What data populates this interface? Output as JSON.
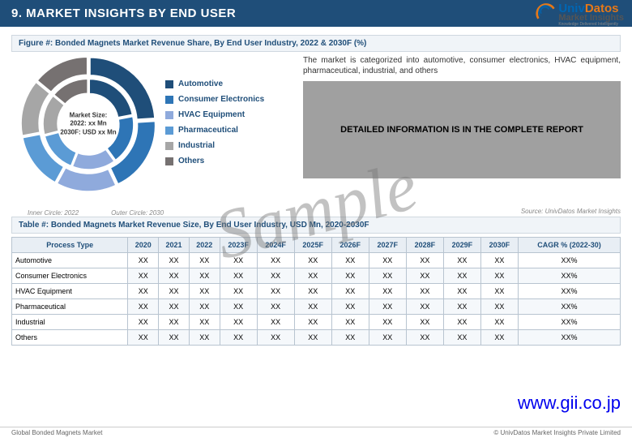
{
  "header": {
    "title": "9. MARKET INSIGHTS BY END USER"
  },
  "logo": {
    "line1a": "Univ",
    "line1b": "Datos",
    "line2": "Market Insights",
    "line3": "Knowledge Delivered Intelligently"
  },
  "figure": {
    "title": "Figure #: Bonded Magnets Market Revenue Share, By End User Industry, 2022 & 2030F (%)",
    "center_l1": "Market Size:",
    "center_l2": "2022: xx Mn",
    "center_l3": "2030F: USD xx Mn",
    "inner_label": "Inner Circle: 2022",
    "outer_label": "Outer Circle: 2030",
    "legend": [
      {
        "label": "Automotive",
        "color": "#1f4e79"
      },
      {
        "label": "Consumer Electronics",
        "color": "#2e75b6"
      },
      {
        "label": "HVAC Equipment",
        "color": "#8faadc"
      },
      {
        "label": "Pharmaceutical",
        "color": "#5b9bd5"
      },
      {
        "label": "Industrial",
        "color": "#a6a6a6"
      },
      {
        "label": "Others",
        "color": "#767171"
      }
    ],
    "outer_slices": [
      {
        "color": "#1f4e79",
        "pct": 24
      },
      {
        "color": "#2e75b6",
        "pct": 19
      },
      {
        "color": "#8faadc",
        "pct": 15
      },
      {
        "color": "#5b9bd5",
        "pct": 14
      },
      {
        "color": "#a6a6a6",
        "pct": 14
      },
      {
        "color": "#767171",
        "pct": 14
      }
    ],
    "inner_slices": [
      {
        "color": "#1f4e79",
        "pct": 22
      },
      {
        "color": "#2e75b6",
        "pct": 18
      },
      {
        "color": "#8faadc",
        "pct": 16
      },
      {
        "color": "#5b9bd5",
        "pct": 15
      },
      {
        "color": "#a6a6a6",
        "pct": 15
      },
      {
        "color": "#767171",
        "pct": 14
      }
    ]
  },
  "description": "The market is categorized into automotive, consumer electronics, HVAC equipment, pharmaceutical, industrial, and others",
  "grey_box": "DETAILED INFORMATION IS IN THE COMPLETE REPORT",
  "source": "Source: UnivDatos Market Insights",
  "table": {
    "title": "Table #: Bonded Magnets Market Revenue Size, By End User Industry, USD Mn, 2020-2030F",
    "columns": [
      "Process Type",
      "2020",
      "2021",
      "2022",
      "2023F",
      "2024F",
      "2025F",
      "2026F",
      "2027F",
      "2028F",
      "2029F",
      "2030F",
      "CAGR % (2022-30)"
    ],
    "rows": [
      [
        "Automotive",
        "XX",
        "XX",
        "XX",
        "XX",
        "XX",
        "XX",
        "XX",
        "XX",
        "XX",
        "XX",
        "XX",
        "XX%"
      ],
      [
        "Consumer Electronics",
        "XX",
        "XX",
        "XX",
        "XX",
        "XX",
        "XX",
        "XX",
        "XX",
        "XX",
        "XX",
        "XX",
        "XX%"
      ],
      [
        "HVAC Equipment",
        "XX",
        "XX",
        "XX",
        "XX",
        "XX",
        "XX",
        "XX",
        "XX",
        "XX",
        "XX",
        "XX",
        "XX%"
      ],
      [
        "Pharmaceutical",
        "XX",
        "XX",
        "XX",
        "XX",
        "XX",
        "XX",
        "XX",
        "XX",
        "XX",
        "XX",
        "XX",
        "XX%"
      ],
      [
        "Industrial",
        "XX",
        "XX",
        "XX",
        "XX",
        "XX",
        "XX",
        "XX",
        "XX",
        "XX",
        "XX",
        "XX",
        "XX%"
      ],
      [
        "Others",
        "XX",
        "XX",
        "XX",
        "XX",
        "XX",
        "XX",
        "XX",
        "XX",
        "XX",
        "XX",
        "XX",
        "XX%"
      ]
    ]
  },
  "footer": {
    "left": "Global Bonded Magnets Market",
    "right": "© UnivDatos Market Insights Private Limited"
  },
  "watermark": "Sample",
  "gii_url": "www.gii.co.jp"
}
